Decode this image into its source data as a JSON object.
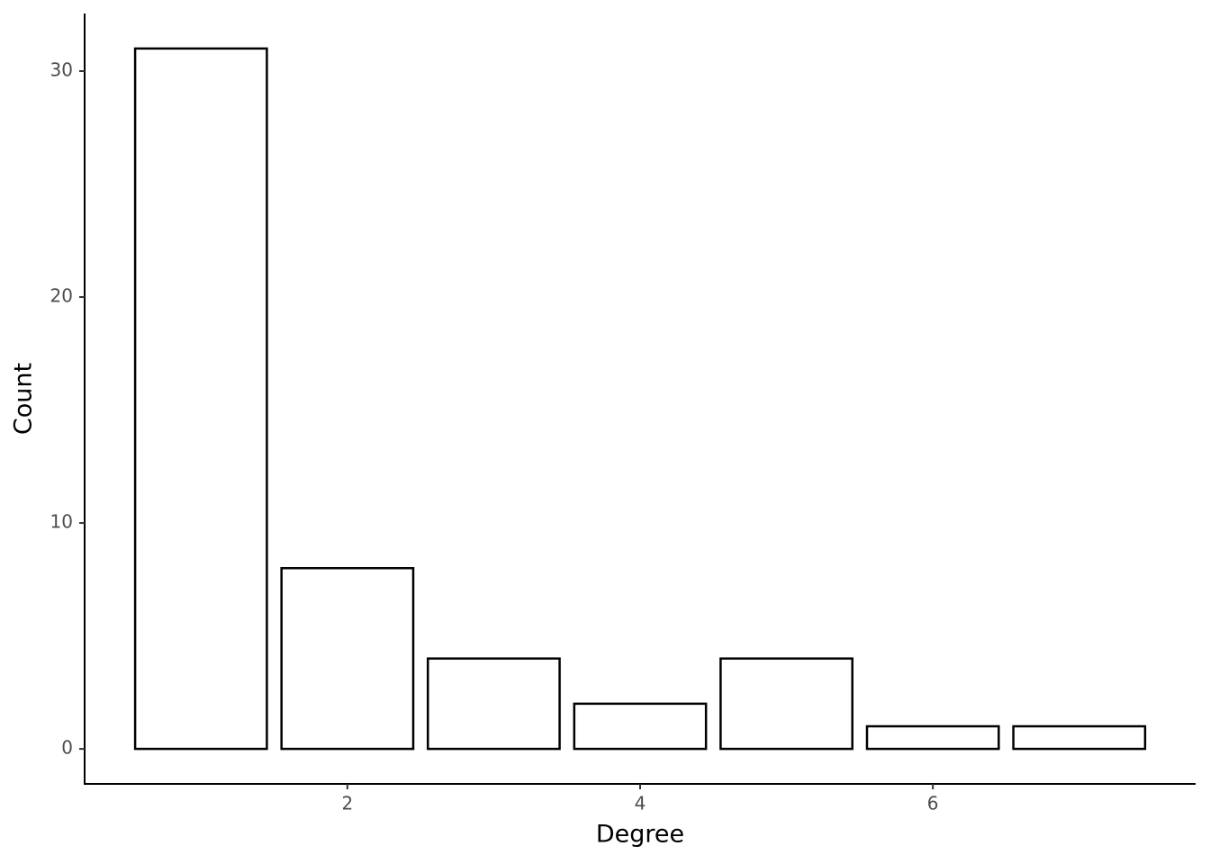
{
  "chart_data": {
    "type": "bar",
    "x": [
      1,
      2,
      3,
      4,
      5,
      6,
      7
    ],
    "values": [
      31,
      8,
      4,
      2,
      4,
      1,
      1
    ],
    "fill": "#ffffff",
    "stroke": "#000000",
    "xlabel": "Degree",
    "ylabel": "Count",
    "xlim": [
      0.205,
      7.795
    ],
    "xticks": [
      2,
      4,
      6
    ],
    "ylim": [
      -1.55,
      32.55
    ],
    "yticks": [
      0,
      10,
      20,
      30
    ],
    "grid": false
  }
}
